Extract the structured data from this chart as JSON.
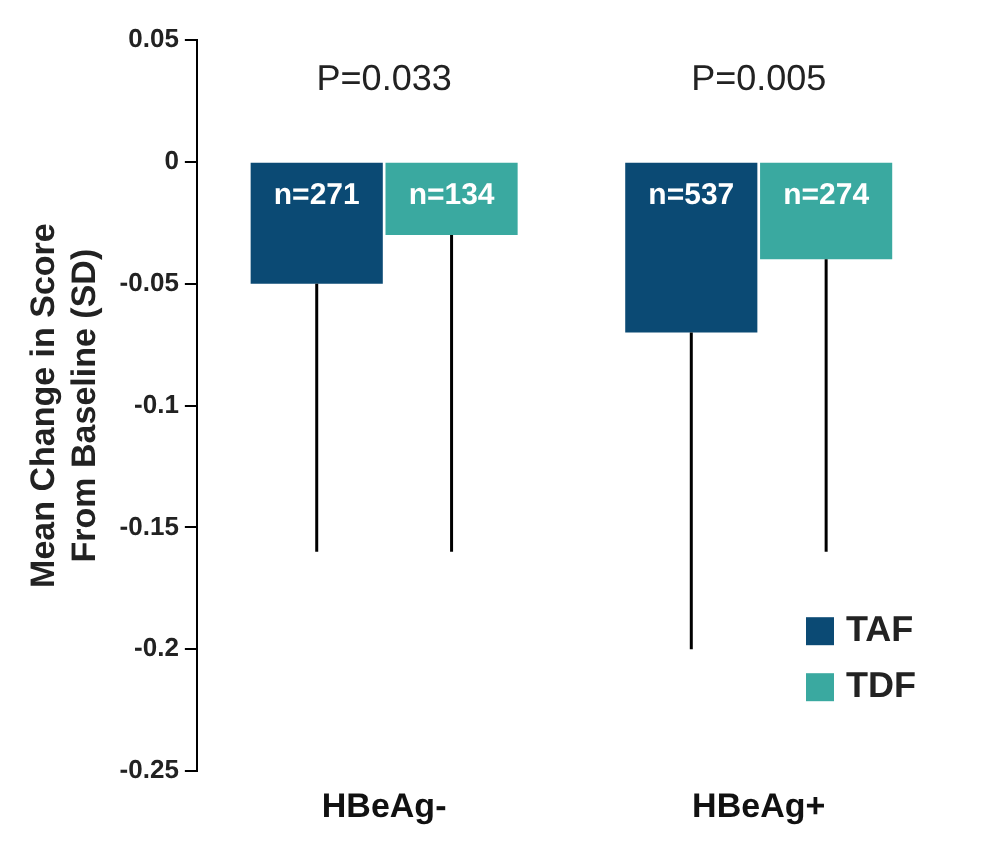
{
  "chart_data": {
    "type": "bar",
    "ylabel": "Mean Change in Score\nFrom Baseline (SD)",
    "categories": [
      "HBeAg-",
      "HBeAg+"
    ],
    "series": [
      {
        "name": "TAF",
        "color": "#0b4a74",
        "values": [
          -0.05,
          -0.07
        ],
        "errors": [
          [
            -0.16,
            -0.05
          ],
          [
            -0.2,
            -0.07
          ]
        ]
      },
      {
        "name": "TDF",
        "color": "#3aa9a0",
        "values": [
          -0.03,
          -0.04
        ],
        "errors": [
          [
            -0.16,
            -0.03
          ],
          [
            -0.16,
            -0.04
          ]
        ]
      }
    ],
    "annotations": [
      "P=0.033",
      "P=0.005",
      "n=271",
      "n=134",
      "n=537",
      "n=274"
    ],
    "ylim": [
      -0.25,
      0.05
    ],
    "yticks": [
      0.05,
      0,
      -0.05,
      -0.1,
      -0.15,
      -0.2,
      -0.25
    ],
    "grid": false,
    "legend": "bottom right"
  }
}
